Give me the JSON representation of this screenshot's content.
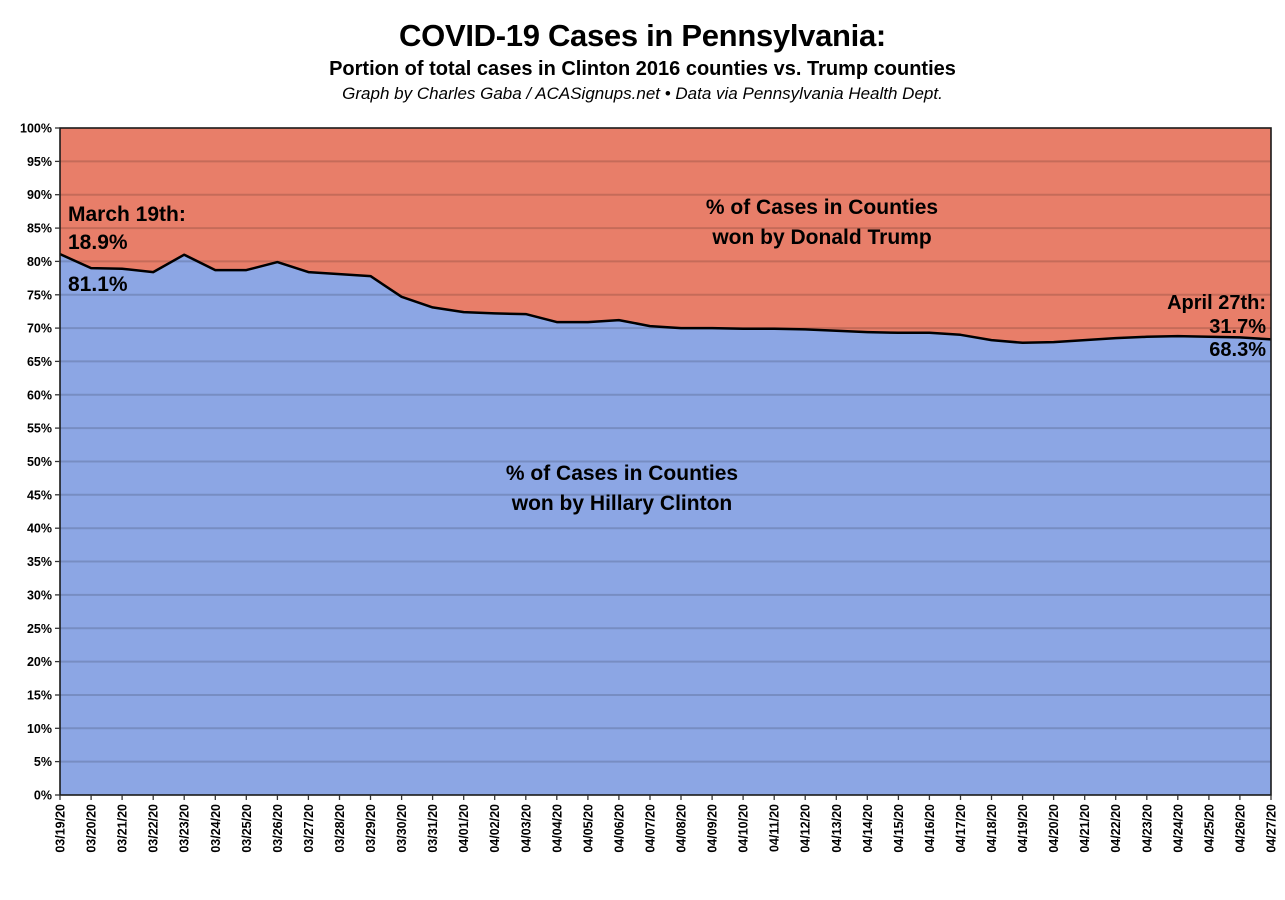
{
  "header": {
    "title": "COVID-19 Cases in Pennsylvania:",
    "subtitle": "Portion of total cases in Clinton 2016 counties vs. Trump counties",
    "attribution": "Graph by Charles Gaba / ACASignups.net  •  Data via Pennsylvania Health Dept."
  },
  "annotations": {
    "left_date": "March 19th:",
    "left_trump_value": "18.9%",
    "left_clinton_value": "81.1%",
    "right_date": "April 27th:",
    "right_trump_value": "31.7%",
    "right_clinton_value": "68.3%",
    "trump_area_line1": "% of Cases in Counties",
    "trump_area_line2": "won by Donald Trump",
    "clinton_area_line1": "% of Cases in Counties",
    "clinton_area_line2": "won by Hillary Clinton"
  },
  "chart_data": {
    "type": "area",
    "stacked": true,
    "x": [
      "03/19/20",
      "03/20/20",
      "03/21/20",
      "03/22/20",
      "03/23/20",
      "03/24/20",
      "03/25/20",
      "03/26/20",
      "03/27/20",
      "03/28/20",
      "03/29/20",
      "03/30/20",
      "03/31/20",
      "04/01/20",
      "04/02/20",
      "04/03/20",
      "04/04/20",
      "04/05/20",
      "04/06/20",
      "04/07/20",
      "04/08/20",
      "04/09/20",
      "04/10/20",
      "04/11/20",
      "04/12/20",
      "04/13/20",
      "04/14/20",
      "04/15/20",
      "04/16/20",
      "04/17/20",
      "04/18/20",
      "04/19/20",
      "04/20/20",
      "04/21/20",
      "04/22/20",
      "04/23/20",
      "04/24/20",
      "04/25/20",
      "04/26/20",
      "04/27/20"
    ],
    "series": [
      {
        "name": "% of Cases in Counties won by Hillary Clinton",
        "color": "#8CA6E4",
        "values": [
          81.1,
          79.0,
          78.9,
          78.4,
          81.0,
          78.7,
          78.7,
          79.9,
          78.4,
          78.1,
          77.8,
          74.7,
          73.1,
          72.4,
          72.2,
          72.1,
          70.9,
          70.9,
          71.2,
          70.3,
          70.0,
          70.0,
          69.9,
          69.9,
          69.8,
          69.6,
          69.4,
          69.3,
          69.3,
          69.0,
          68.2,
          67.8,
          67.9,
          68.2,
          68.5,
          68.7,
          68.8,
          68.7,
          68.6,
          68.3
        ]
      },
      {
        "name": "% of Cases in Counties won by Donald Trump",
        "color": "#E87E69",
        "values": [
          18.9,
          21.0,
          21.1,
          21.6,
          19.0,
          21.3,
          21.3,
          20.1,
          21.6,
          21.9,
          22.2,
          25.3,
          26.9,
          27.6,
          27.8,
          27.9,
          29.1,
          29.1,
          28.8,
          29.7,
          30.0,
          30.0,
          30.1,
          30.1,
          30.2,
          30.4,
          30.6,
          30.7,
          30.7,
          31.0,
          31.8,
          32.2,
          32.1,
          31.8,
          31.5,
          31.3,
          31.2,
          31.3,
          31.4,
          31.7
        ]
      }
    ],
    "title": "COVID-19 Cases in Pennsylvania: Portion of total cases in Clinton 2016 counties vs. Trump counties",
    "xlabel": "",
    "ylabel": "",
    "ylim": [
      0,
      100
    ],
    "ytick_step": 5,
    "ytick_suffix": "%",
    "grid": true,
    "legend": "none",
    "line_color": "#000000",
    "gridline_color": "rgba(0,0,0,0.15)",
    "border_color": "#1a1a1a"
  }
}
